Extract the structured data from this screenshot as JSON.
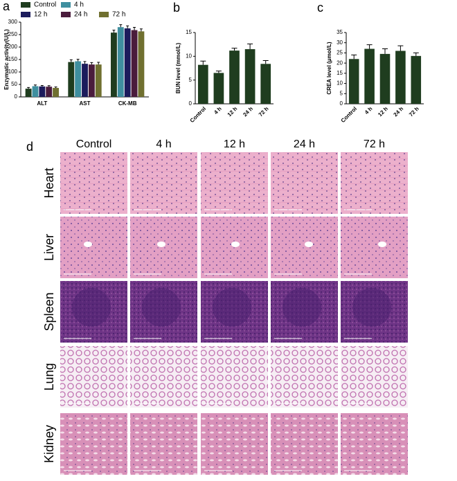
{
  "chart_data": [
    {
      "type": "grouped_bar",
      "panel": "a",
      "ylabel": "Enzymatic activity(U/L)",
      "categories": [
        "ALT",
        "AST",
        "CK-MB"
      ],
      "series": [
        {
          "name": "Control",
          "color": "#1f3d1f",
          "values": [
            33,
            140,
            258
          ],
          "errors": [
            5,
            9,
            10
          ]
        },
        {
          "name": "4 h",
          "color": "#3f8f9f",
          "values": [
            43,
            143,
            280
          ],
          "errors": [
            5,
            8,
            10
          ]
        },
        {
          "name": "12 h",
          "color": "#1c1c5c",
          "values": [
            42,
            133,
            275
          ],
          "errors": [
            4,
            9,
            10
          ]
        },
        {
          "name": "24 h",
          "color": "#4a1c3c",
          "values": [
            41,
            130,
            268
          ],
          "errors": [
            4,
            8,
            11
          ]
        },
        {
          "name": "72 h",
          "color": "#707030",
          "values": [
            36,
            130,
            263
          ],
          "errors": [
            4,
            9,
            10
          ]
        }
      ],
      "ylim": [
        0,
        300
      ],
      "yticks": [
        0,
        50,
        100,
        150,
        200,
        250,
        300
      ]
    },
    {
      "type": "bar",
      "panel": "b",
      "ylabel": "BUN level (mmol/L)",
      "categories": [
        "Control",
        "4 h",
        "12 h",
        "24 h",
        "72 h"
      ],
      "values": [
        8.2,
        6.5,
        11.2,
        11.5,
        8.4
      ],
      "errors": [
        0.8,
        0.4,
        0.5,
        1.1,
        0.7
      ],
      "color": "#1f3d1f",
      "ylim": [
        0,
        15
      ],
      "yticks": [
        0,
        5,
        10,
        15
      ]
    },
    {
      "type": "bar",
      "panel": "c",
      "ylabel": "CREA level (μmol/L)",
      "categories": [
        "Control",
        "4 h",
        "12 h",
        "24 h",
        "72 h"
      ],
      "values": [
        22,
        27,
        24.5,
        26,
        23.5
      ],
      "errors": [
        2,
        2,
        2.5,
        2.5,
        1.5
      ],
      "color": "#1f3d1f",
      "ylim": [
        0,
        35
      ],
      "yticks": [
        0,
        5,
        10,
        15,
        20,
        25,
        30,
        35
      ]
    }
  ],
  "histology": {
    "panel": "d",
    "columns": [
      "Control",
      "4 h",
      "12 h",
      "24 h",
      "72 h"
    ],
    "rows": [
      "Heart",
      "Liver",
      "Spleen",
      "Lung",
      "Kidney"
    ]
  }
}
